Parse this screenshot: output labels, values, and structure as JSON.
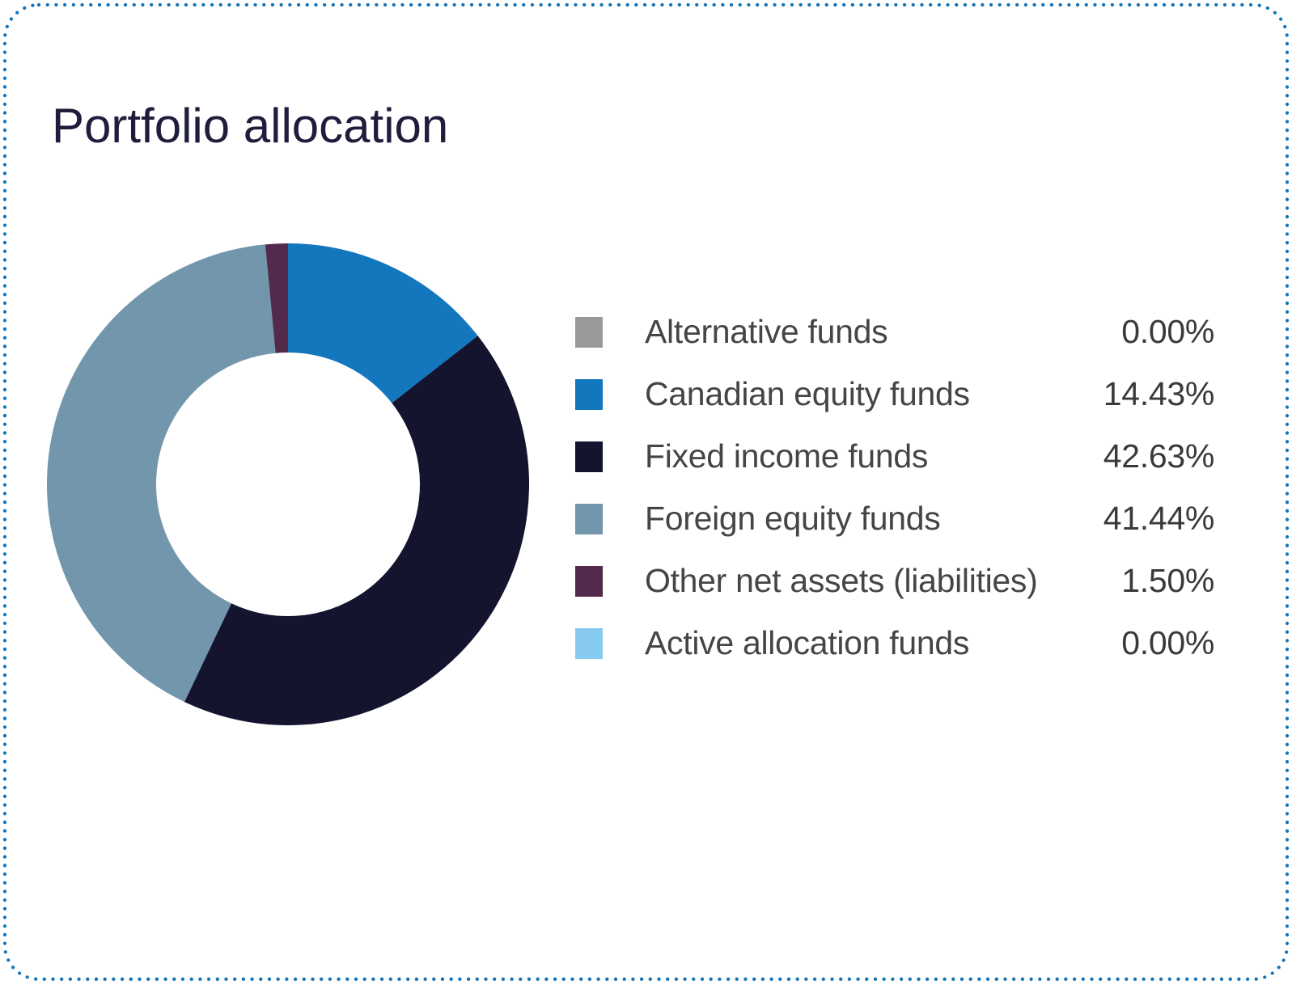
{
  "page": {
    "title": "Portfolio allocation"
  },
  "styles": {
    "border_color": "#1473b8",
    "title_color": "#1e1e3c",
    "label_color": "#454545",
    "value_color": "#3a3a3a",
    "background_color": "#ffffff"
  },
  "chart_data": {
    "type": "pie",
    "subtype": "donut",
    "title": "Portfolio allocation",
    "legend_position": "right",
    "donut_hole_ratio": 0.547,
    "start_angle_deg": 0,
    "direction": "clockwise",
    "series": [
      {
        "label": "Alternative funds",
        "value": 0.0,
        "display": "0.00%",
        "color": "#999999"
      },
      {
        "label": "Canadian equity funds",
        "value": 14.43,
        "display": "14.43%",
        "color": "#1377bd"
      },
      {
        "label": "Fixed income funds",
        "value": 42.63,
        "display": "42.63%",
        "color": "#14142f"
      },
      {
        "label": "Foreign equity funds",
        "value": 41.44,
        "display": "41.44%",
        "color": "#7296ab"
      },
      {
        "label": "Other net assets (liabilities)",
        "value": 1.5,
        "display": "1.50%",
        "color": "#532a4c"
      },
      {
        "label": "Active allocation funds",
        "value": 0.0,
        "display": "0.00%",
        "color": "#87caf0"
      }
    ]
  }
}
